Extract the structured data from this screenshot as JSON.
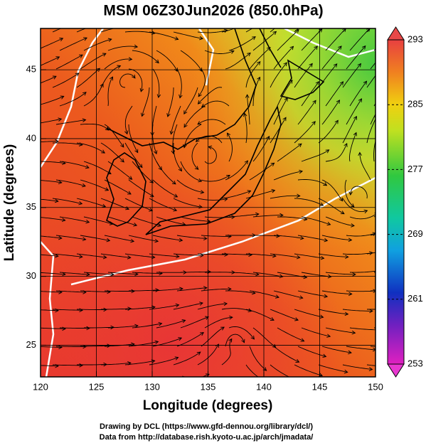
{
  "title": "MSM 06Z30Jun2026 (850.0hPa)",
  "map": {
    "xlabel": "Longitude (degrees)",
    "ylabel": "Latitude  (degrees)",
    "xlim": [
      120,
      150
    ],
    "ylim": [
      22.7,
      48
    ],
    "xticks": [
      120,
      125,
      130,
      135,
      140,
      145,
      150
    ],
    "yticks": [
      25,
      30,
      35,
      40,
      45
    ],
    "grid": true
  },
  "colorbar": {
    "lim": [
      253,
      293
    ],
    "ticks": [
      253,
      261,
      269,
      277,
      285,
      293
    ]
  },
  "credits": [
    "Drawing by DCL (https://www.gfd-dennou.org/library/dcl/)",
    "Data from http://database.rish.kyoto-u.ac.jp/arch/jmadata/"
  ]
}
